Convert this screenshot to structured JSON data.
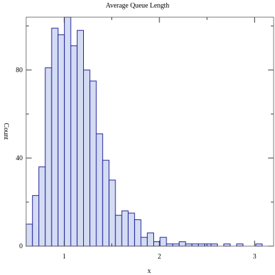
{
  "chart_data": {
    "type": "bar",
    "title": "Average Queue Length",
    "xlabel": "x",
    "ylabel": "Count",
    "xlim": [
      0.6,
      3.2
    ],
    "ylim": [
      0,
      104
    ],
    "bin_width": 0.067,
    "bins": [
      {
        "x0": 0.6,
        "x1": 0.667,
        "count": 10
      },
      {
        "x0": 0.667,
        "x1": 0.734,
        "count": 23
      },
      {
        "x0": 0.734,
        "x1": 0.801,
        "count": 36
      },
      {
        "x0": 0.801,
        "x1": 0.868,
        "count": 81
      },
      {
        "x0": 0.868,
        "x1": 0.935,
        "count": 99
      },
      {
        "x0": 0.935,
        "x1": 1.002,
        "count": 96
      },
      {
        "x0": 1.002,
        "x1": 1.069,
        "count": 104
      },
      {
        "x0": 1.069,
        "x1": 1.136,
        "count": 91
      },
      {
        "x0": 1.136,
        "x1": 1.203,
        "count": 98
      },
      {
        "x0": 1.203,
        "x1": 1.27,
        "count": 80
      },
      {
        "x0": 1.27,
        "x1": 1.337,
        "count": 75
      },
      {
        "x0": 1.337,
        "x1": 1.404,
        "count": 51
      },
      {
        "x0": 1.404,
        "x1": 1.471,
        "count": 39
      },
      {
        "x0": 1.471,
        "x1": 1.538,
        "count": 30
      },
      {
        "x0": 1.538,
        "x1": 1.605,
        "count": 14
      },
      {
        "x0": 1.605,
        "x1": 1.672,
        "count": 16
      },
      {
        "x0": 1.672,
        "x1": 1.739,
        "count": 15
      },
      {
        "x0": 1.739,
        "x1": 1.806,
        "count": 12
      },
      {
        "x0": 1.806,
        "x1": 1.873,
        "count": 4
      },
      {
        "x0": 1.873,
        "x1": 1.94,
        "count": 6
      },
      {
        "x0": 1.94,
        "x1": 2.007,
        "count": 2
      },
      {
        "x0": 2.007,
        "x1": 2.074,
        "count": 4
      },
      {
        "x0": 2.074,
        "x1": 2.141,
        "count": 1
      },
      {
        "x0": 2.141,
        "x1": 2.208,
        "count": 1
      },
      {
        "x0": 2.208,
        "x1": 2.275,
        "count": 2
      },
      {
        "x0": 2.275,
        "x1": 2.342,
        "count": 1
      },
      {
        "x0": 2.342,
        "x1": 2.409,
        "count": 1
      },
      {
        "x0": 2.409,
        "x1": 2.476,
        "count": 1
      },
      {
        "x0": 2.476,
        "x1": 2.543,
        "count": 1
      },
      {
        "x0": 2.543,
        "x1": 2.61,
        "count": 1
      },
      {
        "x0": 2.61,
        "x1": 2.677,
        "count": 0
      },
      {
        "x0": 2.677,
        "x1": 2.744,
        "count": 1
      },
      {
        "x0": 2.744,
        "x1": 2.811,
        "count": 0
      },
      {
        "x0": 2.811,
        "x1": 2.878,
        "count": 1
      },
      {
        "x0": 2.878,
        "x1": 2.945,
        "count": 0
      },
      {
        "x0": 2.945,
        "x1": 3.012,
        "count": 0
      },
      {
        "x0": 3.012,
        "x1": 3.079,
        "count": 1
      },
      {
        "x0": 3.079,
        "x1": 3.146,
        "count": 0
      },
      {
        "x0": 3.146,
        "x1": 3.213,
        "count": 0
      }
    ],
    "x_major_ticks": [
      1,
      2,
      3
    ],
    "x_minor_ticks": [
      1.5,
      2.5
    ],
    "y_major_ticks": [
      0,
      40,
      80
    ],
    "y_minor_ticks": [
      20,
      60,
      100
    ],
    "x_tick_labels": [
      "1",
      "2",
      "3"
    ],
    "y_tick_labels": [
      "0",
      "40",
      "80"
    ],
    "grid": false,
    "legend": "none",
    "bar_fill": "#d4dcf3",
    "bar_stroke": "#1f1f9a",
    "frame_color": "#555555"
  }
}
